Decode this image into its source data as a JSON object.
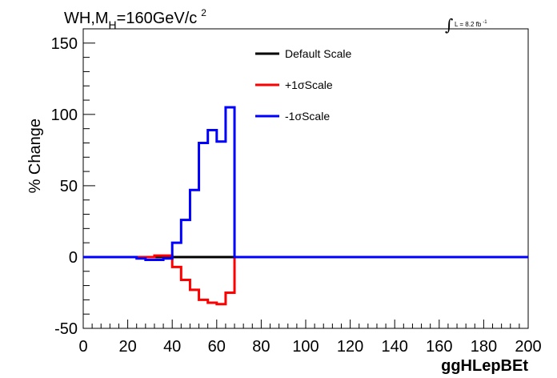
{
  "chart_data": {
    "type": "line",
    "title_prefix": "WH,M",
    "title_sub": "H",
    "title_suffix": "=160GeV/c",
    "title_sup": "2",
    "lumi_label": "L = 8.2 fb",
    "lumi_sup": "-1",
    "xlabel": "ggHLepBEt",
    "ylabel": "% Change",
    "xlim": [
      0,
      200
    ],
    "ylim": [
      -50,
      160
    ],
    "xticks": [
      0,
      20,
      40,
      60,
      80,
      100,
      120,
      140,
      160,
      180,
      200
    ],
    "yticks": [
      -50,
      0,
      50,
      100,
      150
    ],
    "grid": false,
    "legend_position": "top-center",
    "bin_edges": [
      0,
      4,
      8,
      12,
      16,
      20,
      24,
      28,
      32,
      36,
      40,
      44,
      48,
      52,
      56,
      60,
      64,
      68,
      72,
      200
    ],
    "series": [
      {
        "name": "Default Scale",
        "color": "#000000",
        "values": [
          0,
          0,
          0,
          0,
          0,
          0,
          0,
          0,
          0,
          0,
          0,
          0,
          0,
          0,
          0,
          0,
          0,
          0,
          0
        ]
      },
      {
        "name": "+1σScale",
        "color": "#ff0000",
        "values": [
          0,
          0,
          0,
          0,
          0,
          0,
          0,
          0,
          1,
          1,
          -7,
          -16,
          -23,
          -30,
          -32,
          -33,
          -25,
          0,
          0
        ]
      },
      {
        "name": "-1σScale",
        "color": "#0000ff",
        "values": [
          0,
          0,
          0,
          0,
          0,
          0,
          -1,
          -2,
          -2,
          -1,
          10,
          26,
          47,
          80,
          89,
          81,
          105,
          0,
          0
        ]
      }
    ]
  }
}
